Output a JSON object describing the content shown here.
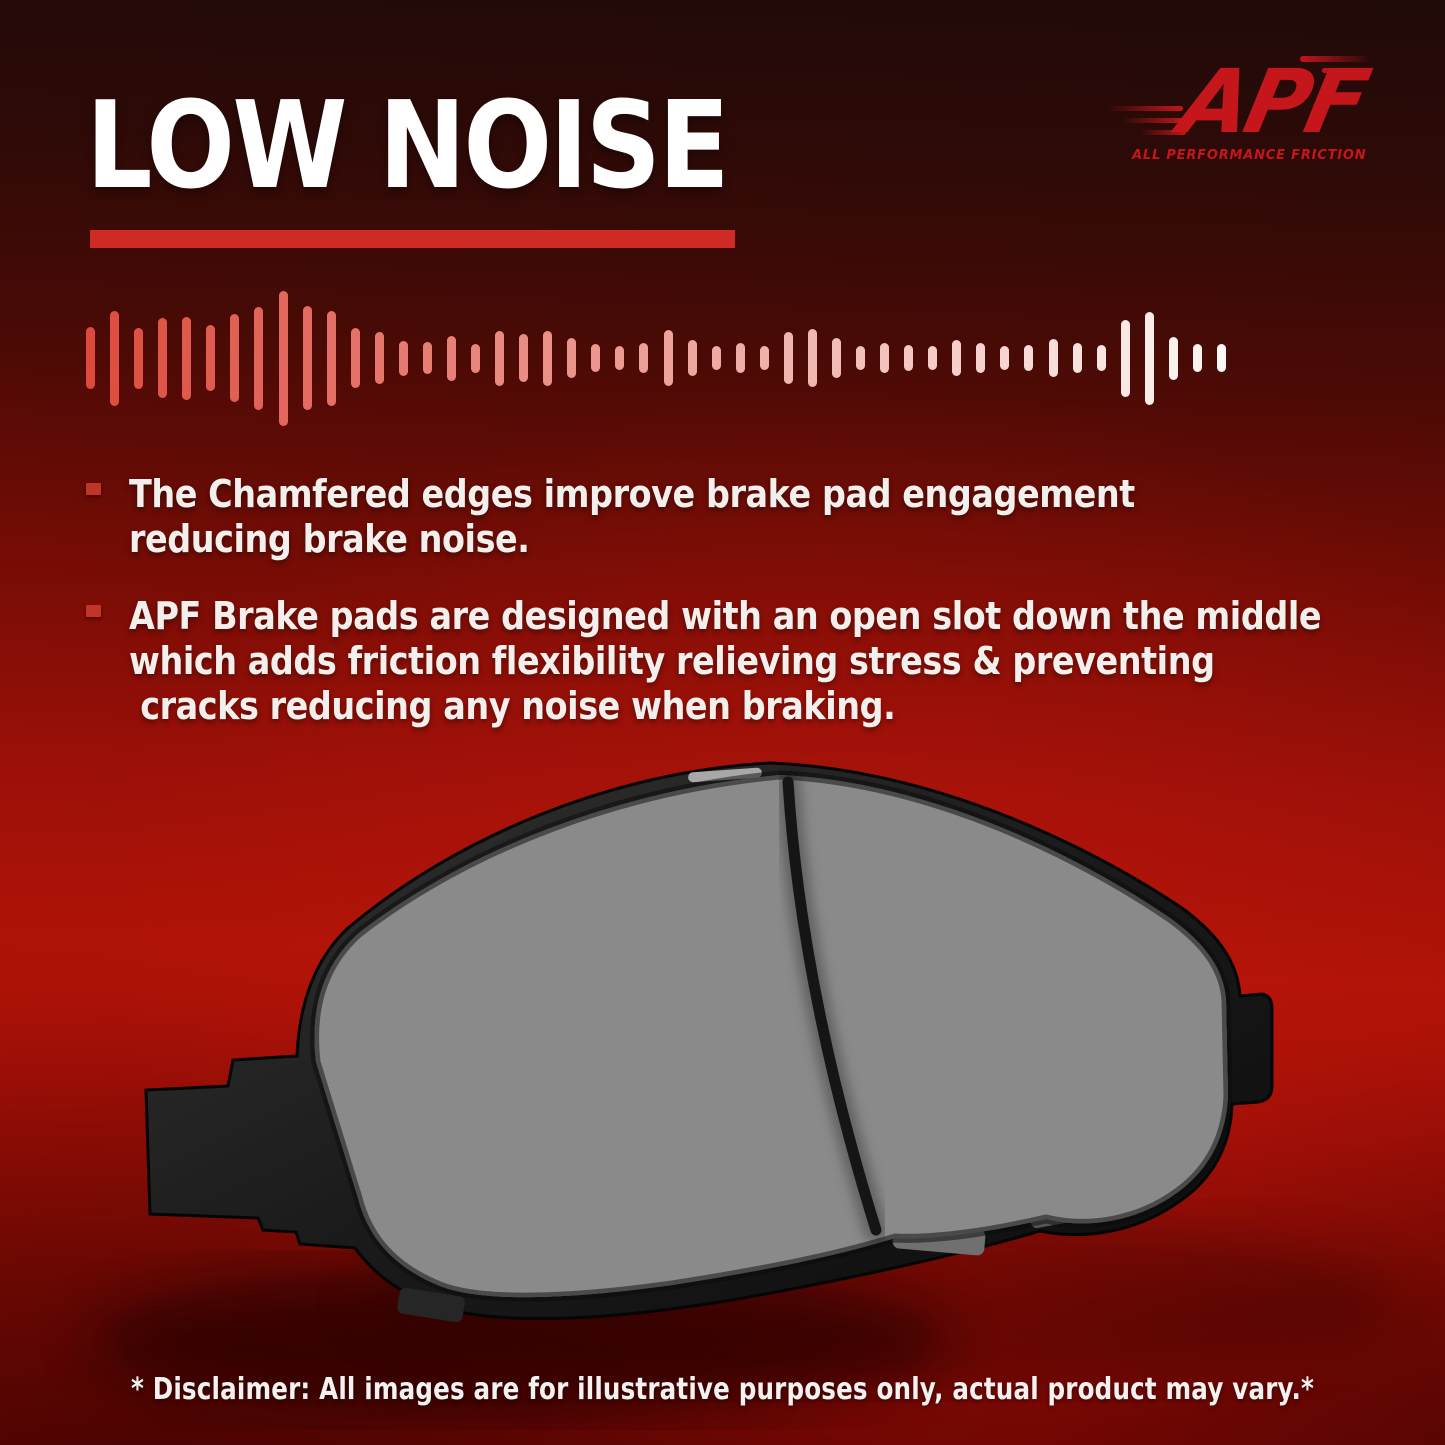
{
  "header": {
    "title": "LOW NOISE",
    "underline_color": "#cf2b24"
  },
  "logo": {
    "brand": "APF",
    "tagline": "ALL PERFORMANCE FRICTION",
    "color": "#c4161b"
  },
  "waveform": {
    "bar_color_start": "#dd4a3d",
    "bar_color_end": "#fdf7f5",
    "heights": [
      62,
      95,
      61,
      80,
      83,
      66,
      88,
      103,
      135,
      104,
      95,
      60,
      52,
      35,
      32,
      45,
      29,
      55,
      48,
      55,
      40,
      28,
      24,
      30,
      56,
      36,
      24,
      30,
      24,
      52,
      58,
      40,
      24,
      30,
      26,
      24,
      36,
      30,
      24,
      26,
      38,
      30,
      26,
      77,
      93,
      43,
      28,
      28
    ]
  },
  "bullets": {
    "marker_color": "#bf3629",
    "items": [
      {
        "lines": [
          "The Chamfered edges improve brake pad engagement",
          "reducing brake noise."
        ]
      },
      {
        "lines": [
          "APF Brake pads are designed with an open slot down the middle",
          "which adds friction flexibility relieving stress & preventing",
          " cracks reducing any noise when braking."
        ]
      }
    ]
  },
  "product": {
    "friction_color": "#8a8a8a",
    "backing_color": "#1a1a1a"
  },
  "disclaimer": {
    "text": "* Disclaimer: All images are for illustrative purposes only, actual product may vary.*"
  }
}
